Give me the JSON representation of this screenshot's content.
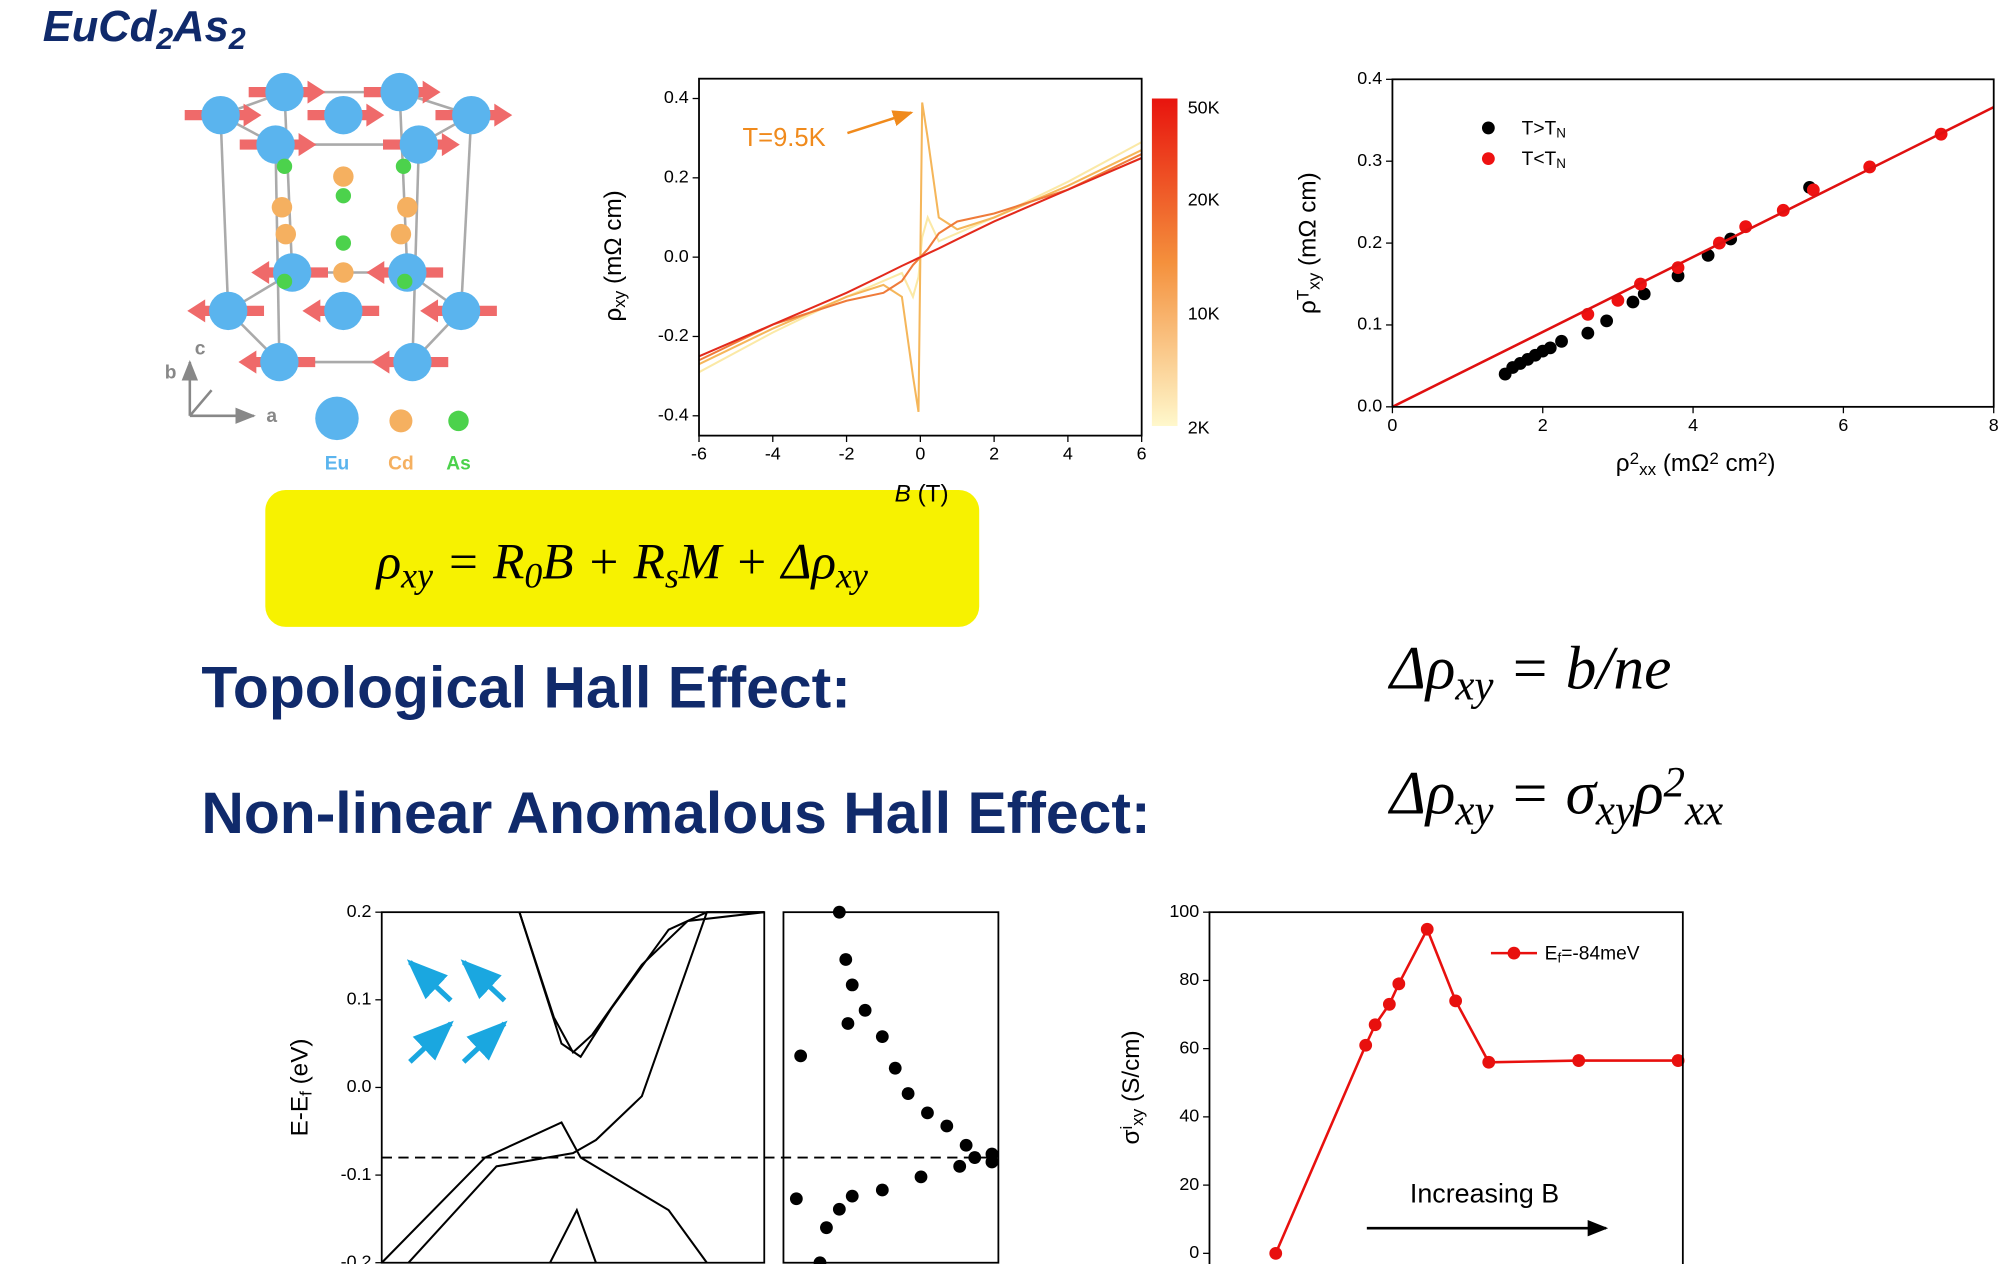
{
  "title": [
    {
      "text": "EuCd"
    },
    {
      "sub": "2"
    },
    {
      "text": "As"
    },
    {
      "sub": "2"
    }
  ],
  "structure": {
    "axis_labels": [
      "a",
      "b",
      "c"
    ],
    "legend": [
      "Eu",
      "Cd",
      "As"
    ]
  },
  "equation": [
    {
      "text": "ρ"
    },
    {
      "sub": "xy"
    },
    {
      "text": " = R"
    },
    {
      "sub": "0"
    },
    {
      "text": "B + R"
    },
    {
      "sub": "s"
    },
    {
      "text": "M + Δρ"
    },
    {
      "sub": "xy"
    }
  ],
  "effects": [
    {
      "label": "Topological Hall Effect:",
      "formula": [
        {
          "text": "Δρ"
        },
        {
          "sub": "xy"
        },
        {
          "text": " = b/ne"
        }
      ]
    },
    {
      "label": "Non-linear Anomalous Hall Effect:",
      "formula": [
        {
          "text": "Δρ"
        },
        {
          "sub": "xy"
        },
        {
          "text": " = σ"
        },
        {
          "sub": "xy"
        },
        {
          "text": "ρ"
        },
        {
          "sup": "2"
        },
        {
          "sub": "xx"
        }
      ]
    }
  ],
  "chart_data": [
    {
      "type": "line",
      "x": [
        -6,
        -4,
        -2,
        -1,
        -0.5,
        -0.2,
        -0.05,
        0,
        0.05,
        0.2,
        0.5,
        1,
        2,
        4,
        6
      ],
      "series": [
        {
          "color": "#fbe9a6",
          "values": [
            -0.29,
            -0.19,
            -0.1,
            -0.06,
            -0.04,
            -0.1,
            -0.05,
            0,
            0.05,
            0.1,
            0.04,
            0.06,
            0.1,
            0.19,
            0.29
          ]
        },
        {
          "color": "#f5b65a",
          "values": [
            -0.27,
            -0.18,
            -0.1,
            -0.07,
            -0.1,
            -0.3,
            -0.39,
            0,
            0.39,
            0.3,
            0.1,
            0.07,
            0.1,
            0.18,
            0.27
          ]
        },
        {
          "color": "#ef7b3a",
          "values": [
            -0.26,
            -0.17,
            -0.11,
            -0.09,
            -0.06,
            -0.02,
            -0.005,
            0,
            0.005,
            0.02,
            0.06,
            0.09,
            0.11,
            0.17,
            0.26
          ]
        },
        {
          "color": "#e32a1c",
          "values": [
            -0.25,
            -0.17,
            -0.09,
            -0.045,
            -0.022,
            -0.009,
            -0.002,
            0,
            0.002,
            0.009,
            0.022,
            0.045,
            0.09,
            0.17,
            0.25
          ]
        }
      ],
      "xlim": [
        -6,
        6
      ],
      "xticks": [
        -6,
        -4,
        -2,
        0,
        2,
        4,
        6
      ],
      "ylim": [
        -0.45,
        0.45
      ],
      "yticks": [
        -0.4,
        -0.2,
        {
          "value": 0,
          "label": "0.0"
        },
        0.2,
        0.4
      ],
      "xlabel": [
        {
          "italic": "B"
        },
        {
          "text": " (T)"
        }
      ],
      "ylabel": [
        {
          "text": "ρ"
        },
        {
          "sub": "xy"
        },
        {
          "text": " (mΩ cm)"
        }
      ],
      "annotation": "T=9.5K",
      "annotation_color": "#f08a1c",
      "colorbar": {
        "colors": [
          "#e8140e",
          "#f4903c",
          "#fff8cc"
        ],
        "labels": [
          "50K",
          "20K",
          "10K",
          "2K"
        ]
      }
    },
    {
      "type": "scatter",
      "series": [
        {
          "name": [
            {
              "text": "T>T"
            },
            {
              "sub": "N"
            }
          ],
          "color": "#000000",
          "x": [
            1.5,
            1.6,
            1.7,
            1.8,
            1.9,
            2.0,
            2.1,
            2.25,
            2.6,
            2.85,
            3.2,
            3.35,
            3.8,
            4.2,
            4.5,
            5.55
          ],
          "values": [
            0.04,
            0.048,
            0.053,
            0.058,
            0.063,
            0.068,
            0.072,
            0.08,
            0.09,
            0.105,
            0.128,
            0.138,
            0.16,
            0.185,
            0.205,
            0.268
          ]
        },
        {
          "name": [
            {
              "text": "T<T"
            },
            {
              "sub": "N"
            }
          ],
          "color": "#ee1111",
          "x": [
            2.6,
            3.0,
            3.3,
            3.8,
            4.35,
            4.7,
            5.2,
            5.6,
            6.35,
            7.3
          ],
          "values": [
            0.113,
            0.13,
            0.15,
            0.17,
            0.2,
            0.22,
            0.24,
            0.265,
            0.293,
            0.333
          ]
        }
      ],
      "fit": {
        "x": [
          0,
          8
        ],
        "values": [
          0,
          0.366
        ],
        "color": "#e01010"
      },
      "xlim": [
        0,
        8
      ],
      "xticks": [
        0,
        2,
        4,
        6,
        8
      ],
      "ylim": [
        0,
        0.4
      ],
      "yticks": [
        {
          "value": 0,
          "label": "0.0"
        },
        0.1,
        0.2,
        0.3,
        0.4
      ],
      "xlabel": [
        {
          "text": "ρ"
        },
        {
          "sup": "2"
        },
        {
          "sub": "xx"
        },
        {
          "text": " (mΩ"
        },
        {
          "sup": "2"
        },
        {
          "text": " cm"
        },
        {
          "sup": "2"
        },
        {
          "text": ")"
        }
      ],
      "ylabel": [
        {
          "text": "ρ"
        },
        {
          "sup": "T"
        },
        {
          "sub": "xy"
        },
        {
          "text": " (mΩ cm)"
        }
      ],
      "legend": "upper left"
    },
    {
      "type": "line",
      "series": [
        {
          "color": "#000000",
          "x": [
            0.36,
            0.45,
            0.5,
            0.55,
            0.68,
            0.8,
            1.0
          ],
          "values": [
            0.2,
            0.08,
            0.04,
            0.06,
            0.14,
            0.19,
            0.2
          ]
        },
        {
          "color": "#000000",
          "x": [
            0.36,
            0.47,
            0.52,
            0.6,
            0.75,
            0.85,
            1.0
          ],
          "values": [
            0.2,
            0.05,
            0.035,
            0.09,
            0.18,
            0.2,
            0.2
          ]
        },
        {
          "color": "#000000",
          "x": [
            0.0,
            0.27,
            0.47,
            0.52,
            0.75,
            0.85
          ],
          "values": [
            -0.2,
            -0.08,
            -0.04,
            -0.08,
            -0.14,
            -0.2
          ]
        },
        {
          "color": "#000000",
          "x": [
            0.07,
            0.3,
            0.5,
            0.56,
            0.68,
            0.85
          ],
          "values": [
            -0.2,
            -0.09,
            -0.075,
            -0.06,
            -0.01,
            0.2
          ]
        },
        {
          "color": "#000000",
          "x": [
            0.44,
            0.51,
            0.56
          ],
          "values": [
            -0.2,
            -0.14,
            -0.2
          ]
        }
      ],
      "xlim": [
        0,
        1
      ],
      "ylim": [
        -0.2,
        0.2
      ],
      "yticks": [
        -0.2,
        -0.1,
        {
          "value": 0,
          "label": "0.0"
        },
        0.1,
        0.2
      ],
      "hline": -0.08,
      "ylabel": [
        {
          "text": "E-E"
        },
        {
          "sub": "f"
        },
        {
          "text": " (eV)"
        }
      ]
    },
    {
      "type": "scatter",
      "series": [
        {
          "color": "#000000",
          "x": [
            0.26,
            0.29,
            0.32,
            0.38,
            0.46,
            0.52,
            0.58,
            0.67,
            0.76,
            0.85,
            0.89,
            0.08,
            0.3,
            0.17,
            0.2,
            0.26,
            0.32,
            0.46,
            0.64,
            0.82,
            0.97,
            0.06,
            0.97
          ],
          "values": [
            0.2,
            0.146,
            0.117,
            0.088,
            0.058,
            0.022,
            -0.007,
            -0.029,
            -0.044,
            -0.066,
            -0.08,
            0.036,
            0.073,
            -0.2,
            -0.16,
            -0.139,
            -0.124,
            -0.117,
            -0.102,
            -0.09,
            -0.085,
            -0.127,
            -0.076
          ]
        }
      ],
      "xlim": [
        0,
        1
      ],
      "ylim": [
        -0.2,
        0.2
      ]
    },
    {
      "type": "line",
      "markers": true,
      "series": [
        {
          "name": [
            {
              "text": "E"
            },
            {
              "sub": "f"
            },
            {
              "text": "=-84meV"
            }
          ],
          "color": "#e8100e",
          "x": [
            1.4,
            3.3,
            3.5,
            3.8,
            4.0,
            4.6,
            5.2,
            5.9,
            7.8,
            9.9
          ],
          "values": [
            0,
            61,
            67,
            73,
            79,
            95,
            74,
            56,
            56.5,
            56.5
          ]
        }
      ],
      "xlim": [
        0,
        10
      ],
      "ylim": [
        -5,
        100
      ],
      "yticks": [
        0,
        20,
        40,
        60,
        80,
        100
      ],
      "ylabel": [
        {
          "text": "σ"
        },
        {
          "sup": "i"
        },
        {
          "sub": "xy"
        },
        {
          "text": " (S/cm)"
        }
      ],
      "annotation": "Increasing B",
      "annotation_color": "#000000",
      "legend": "upper right"
    }
  ]
}
